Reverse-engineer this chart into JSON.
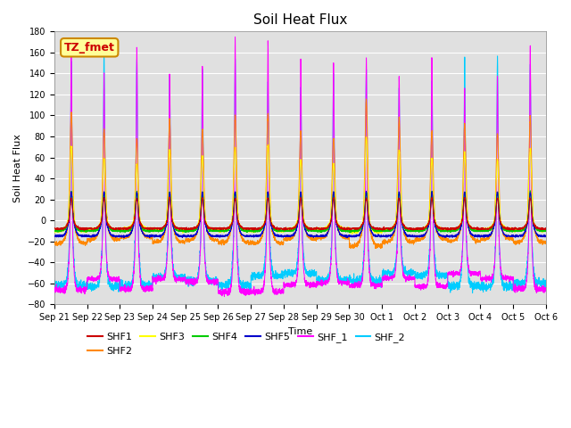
{
  "title": "Soil Heat Flux",
  "xlabel": "Time",
  "ylabel": "Soil Heat Flux",
  "ylim": [
    -80,
    180
  ],
  "yticks": [
    -80,
    -60,
    -40,
    -20,
    0,
    20,
    40,
    60,
    80,
    100,
    120,
    140,
    160,
    180
  ],
  "xtick_labels": [
    "Sep 21",
    "Sep 22",
    "Sep 23",
    "Sep 24",
    "Sep 25",
    "Sep 26",
    "Sep 27",
    "Sep 28",
    "Sep 29",
    "Sep 30",
    "Oct 1",
    "Oct 2",
    "Oct 3",
    "Oct 4",
    "Oct 5",
    "Oct 6"
  ],
  "colors": {
    "SHF1": "#cc0000",
    "SHF2": "#ff8800",
    "SHF3": "#ffff00",
    "SHF4": "#00cc00",
    "SHF5": "#0000cc",
    "SHF_1": "#ff00ff",
    "SHF_2": "#00ccff"
  },
  "annotation_text": "TZ_fmet",
  "annotation_bg": "#ffff99",
  "annotation_border": "#cc8800",
  "annotation_text_color": "#cc0000",
  "bg_color": "#e0e0e0",
  "num_days": 15,
  "pts_per_day": 288
}
